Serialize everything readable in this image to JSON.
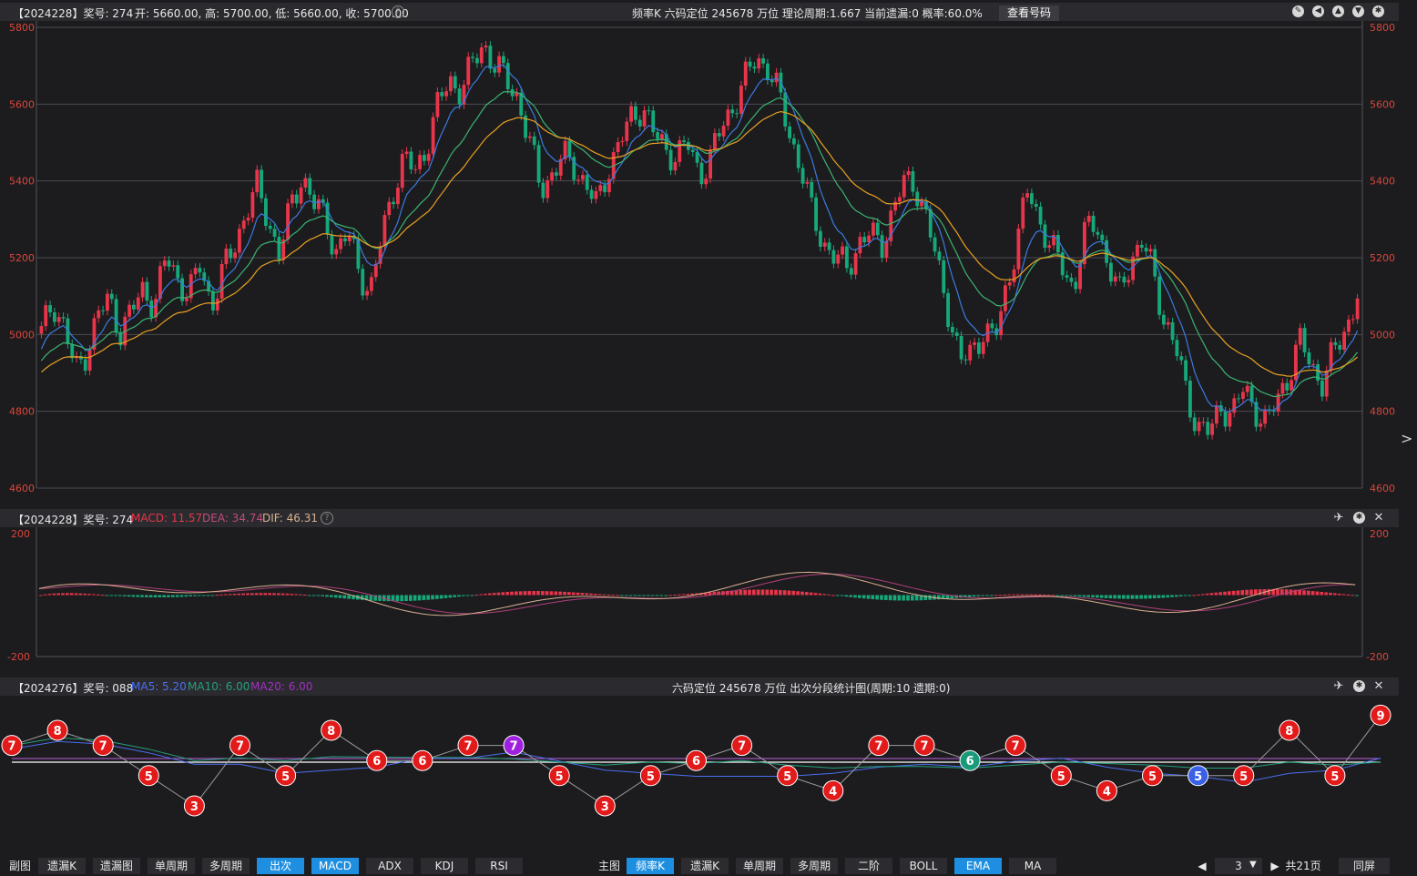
{
  "main_header": {
    "period_info": "【2024228】奖号: 274",
    "ohlc": "开: 5660.00, 高: 5700.00, 低: 5660.00, 收: 5700.00",
    "center_info": "频率K   六码定位   245678   万位   理论周期:1.667   当前遗漏:0   概率:60.0%",
    "view_button": "查看号码"
  },
  "macd_header": {
    "period_info": "【2024228】奖号: 274",
    "macd": "MACD: 11.57",
    "dea": "DEA: 34.74",
    "dif": "DIF: 46.31"
  },
  "sub_header": {
    "period_info": "【2024276】奖号: 088",
    "ma5": "MA5: 5.20",
    "ma10": "MA10: 6.00",
    "ma20": "MA20: 6.00",
    "center_info": "六码定位   245678     万位   出次分段统计图(周期:10   遗期:0)"
  },
  "axes": {
    "main_ticks": [
      "5800",
      "5600",
      "5400",
      "5200",
      "5000",
      "4800",
      "4600"
    ],
    "macd_ticks": [
      "200",
      "-200"
    ]
  },
  "chart_data": [
    {
      "type": "candlestick",
      "ylim": [
        4600,
        5800
      ],
      "ticks": [
        5800,
        5600,
        5400,
        5200,
        5000,
        4800,
        4600
      ],
      "series": [
        {
          "name": "EMA-fast",
          "color": "#3a7be0"
        },
        {
          "name": "EMA-mid",
          "color": "#3cb371"
        },
        {
          "name": "EMA-slow",
          "color": "#e8a020"
        }
      ],
      "close_path": [
        5000,
        5090,
        5020,
        4900,
        4960,
        5050,
        5090,
        5010,
        5060,
        5120,
        5080,
        5200,
        5150,
        5100,
        5180,
        5080,
        5160,
        5230,
        5320,
        5380,
        5300,
        5210,
        5330,
        5420,
        5340,
        5300,
        5220,
        5260,
        5170,
        5110,
        5250,
        5380,
        5460,
        5420,
        5500,
        5600,
        5660,
        5640,
        5700,
        5760,
        5700,
        5660,
        5620,
        5500,
        5380,
        5420,
        5460,
        5440,
        5390,
        5330,
        5440,
        5500,
        5560,
        5600,
        5520,
        5480,
        5470,
        5490,
        5420,
        5460,
        5540,
        5600,
        5660,
        5720,
        5700,
        5620,
        5520,
        5430,
        5300,
        5240,
        5200,
        5170,
        5240,
        5260,
        5230,
        5320,
        5390,
        5400,
        5300,
        5180,
        5060,
        4920,
        4960,
        5010,
        4980,
        5120,
        5240,
        5380,
        5300,
        5220,
        5180,
        5120,
        5260,
        5300,
        5180,
        5100,
        5200,
        5240,
        5160,
        5040,
        4960,
        4840,
        4760,
        4740,
        4820,
        4790,
        4860,
        4810,
        4760,
        4840,
        4900,
        4980,
        4920,
        4870,
        4960,
        5020,
        5100
      ]
    },
    {
      "type": "line+bar",
      "ylim": [
        -200,
        200
      ],
      "ticks": [
        200,
        -200
      ]
    },
    {
      "type": "scatter",
      "title": "出次分段统计图",
      "values": [
        7,
        8,
        7,
        5,
        3,
        7,
        5,
        8,
        6,
        6,
        7,
        7,
        5,
        3,
        5,
        6,
        7,
        5,
        4,
        7,
        7,
        6,
        7,
        5,
        4,
        5,
        5,
        5,
        8,
        5,
        9
      ],
      "special_colors": {
        "purple_index": 11,
        "green_index": 21,
        "blue_index": 26
      }
    }
  ],
  "bottom_left_tabs": [
    "副图",
    "遗漏K",
    "遗漏图",
    "单周期",
    "多周期",
    "出次",
    "MACD",
    "ADX",
    "KDJ",
    "RSI"
  ],
  "bottom_left_active": [
    "出次",
    "MACD"
  ],
  "bottom_right_tabs": [
    "主图",
    "频率K",
    "遗漏K",
    "单周期",
    "多周期",
    "二阶",
    "BOLL",
    "EMA",
    "MA"
  ],
  "bottom_right_active": [
    "频率K",
    "EMA"
  ],
  "pager": {
    "page": "3",
    "total": "共21页",
    "sync": "同屏"
  },
  "colors": {
    "up": "#e8354a",
    "down": "#17a87a",
    "grid": "#55555a",
    "axis": "#d9463a"
  }
}
